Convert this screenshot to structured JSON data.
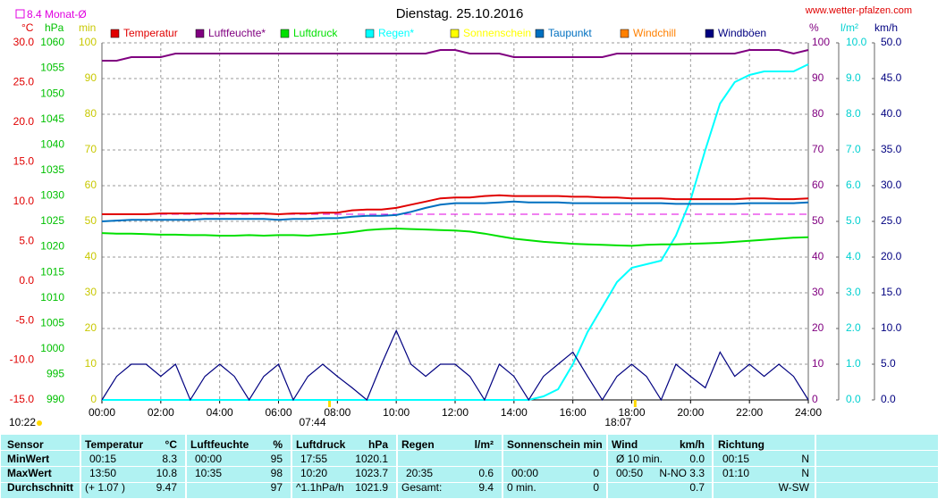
{
  "chart_data": {
    "type": "line",
    "title": "Dienstag. 25.10.2016",
    "site": "www.wetter-pfalzen.com",
    "monthly_mean": {
      "value": 8.4,
      "label": "8.4 Monat-Ø",
      "color": "#e000e0"
    },
    "day_length": "10:22",
    "sunrise": {
      "value": 7.733,
      "label": "07:44"
    },
    "sunset": {
      "value": 18.117,
      "label": "18:07"
    },
    "xlim": [
      0,
      24
    ],
    "xticks": [
      {
        "value": 0,
        "label": "00:00"
      },
      {
        "value": 2,
        "label": "02:00"
      },
      {
        "value": 4,
        "label": "04:00"
      },
      {
        "value": 6,
        "label": "06:00"
      },
      {
        "value": 8,
        "label": "08:00"
      },
      {
        "value": 10,
        "label": "10:00"
      },
      {
        "value": 12,
        "label": "12:00"
      },
      {
        "value": 14,
        "label": "14:00"
      },
      {
        "value": 16,
        "label": "16:00"
      },
      {
        "value": 18,
        "label": "18:00"
      },
      {
        "value": 20,
        "label": "20:00"
      },
      {
        "value": 22,
        "label": "22:00"
      },
      {
        "value": 24,
        "label": "24:00"
      }
    ],
    "grid": true,
    "axes": {
      "temp": {
        "unit": "°C",
        "color": "#e00000",
        "side": "left",
        "lim": [
          -15,
          30
        ],
        "ticks": [
          {
            "value": -15,
            "label": "-15.0"
          },
          {
            "value": -10,
            "label": "-10.0"
          },
          {
            "value": -5,
            "label": "-5.0"
          },
          {
            "value": 0,
            "label": "0.0"
          },
          {
            "value": 5,
            "label": "5.0"
          },
          {
            "value": 10,
            "label": "10.0"
          },
          {
            "value": 15,
            "label": "15.0"
          },
          {
            "value": 20,
            "label": "20.0"
          },
          {
            "value": 25,
            "label": "25.0"
          },
          {
            "value": 30,
            "label": "30.0"
          }
        ]
      },
      "hpa": {
        "unit": "hPa",
        "color": "#00c000",
        "side": "left",
        "lim": [
          990,
          1060
        ],
        "ticks": [
          990,
          995,
          1000,
          1005,
          1010,
          1015,
          1020,
          1025,
          1030,
          1035,
          1040,
          1045,
          1050,
          1055,
          1060
        ]
      },
      "min": {
        "unit": "min",
        "color": "#c8c800",
        "side": "left",
        "lim": [
          0,
          100
        ],
        "ticks": [
          0,
          10,
          20,
          30,
          40,
          50,
          60,
          70,
          80,
          90,
          100
        ]
      },
      "pct": {
        "unit": "%",
        "color": "#800080",
        "side": "right",
        "lim": [
          0,
          100
        ],
        "ticks": [
          0,
          10,
          20,
          30,
          40,
          50,
          60,
          70,
          80,
          90,
          100
        ]
      },
      "rain": {
        "unit": "l/m²",
        "color": "#00d0d0",
        "side": "right",
        "lim": [
          0,
          10
        ],
        "ticks": [
          {
            "value": 0,
            "label": "0.0"
          },
          {
            "value": 1,
            "label": "1.0"
          },
          {
            "value": 2,
            "label": "2.0"
          },
          {
            "value": 3,
            "label": "3.0"
          },
          {
            "value": 4,
            "label": "4.0"
          },
          {
            "value": 5,
            "label": "5.0"
          },
          {
            "value": 6,
            "label": "6.0"
          },
          {
            "value": 7,
            "label": "7.0"
          },
          {
            "value": 8,
            "label": "8.0"
          },
          {
            "value": 9,
            "label": "9.0"
          },
          {
            "value": 10,
            "label": "10.0"
          }
        ]
      },
      "wind": {
        "unit": "km/h",
        "color": "#000080",
        "side": "right",
        "lim": [
          0,
          50
        ],
        "ticks": [
          {
            "value": 0,
            "label": "0.0"
          },
          {
            "value": 5,
            "label": "5.0"
          },
          {
            "value": 10,
            "label": "10.0"
          },
          {
            "value": 15,
            "label": "15.0"
          },
          {
            "value": 20,
            "label": "20.0"
          },
          {
            "value": 25,
            "label": "25.0"
          },
          {
            "value": 30,
            "label": "30.0"
          },
          {
            "value": 35,
            "label": "35.0"
          },
          {
            "value": 40,
            "label": "40.0"
          },
          {
            "value": 45,
            "label": "45.0"
          },
          {
            "value": 50,
            "label": "50.0"
          }
        ]
      }
    },
    "x": [
      0,
      0.5,
      1,
      1.5,
      2,
      2.5,
      3,
      3.5,
      4,
      4.5,
      5,
      5.5,
      6,
      6.5,
      7,
      7.5,
      8,
      8.5,
      9,
      9.5,
      10,
      10.5,
      11,
      11.5,
      12,
      12.5,
      13,
      13.5,
      14,
      14.5,
      15,
      15.5,
      16,
      16.5,
      17,
      17.5,
      18,
      18.5,
      19,
      19.5,
      20,
      20.5,
      21,
      21.5,
      22,
      22.5,
      23,
      23.5,
      24
    ],
    "series": [
      {
        "name": "Temperatur",
        "color": "#e00000",
        "axis": "temp",
        "values": [
          8.4,
          8.4,
          8.4,
          8.4,
          8.5,
          8.5,
          8.5,
          8.5,
          8.5,
          8.5,
          8.5,
          8.5,
          8.4,
          8.5,
          8.5,
          8.6,
          8.6,
          8.9,
          9.0,
          9.0,
          9.2,
          9.6,
          10.0,
          10.4,
          10.5,
          10.5,
          10.7,
          10.8,
          10.7,
          10.7,
          10.7,
          10.7,
          10.6,
          10.6,
          10.5,
          10.5,
          10.4,
          10.4,
          10.4,
          10.3,
          10.3,
          10.3,
          10.3,
          10.3,
          10.4,
          10.4,
          10.3,
          10.3,
          10.4
        ]
      },
      {
        "name": "Luftfeuchte*",
        "color": "#800080",
        "axis": "pct",
        "values": [
          95,
          95,
          96,
          96,
          96,
          97,
          97,
          97,
          97,
          97,
          97,
          97,
          97,
          97,
          97,
          97,
          97,
          97,
          97,
          97,
          97,
          97,
          97,
          98,
          98,
          97,
          97,
          97,
          96,
          96,
          96,
          96,
          96,
          96,
          96,
          97,
          97,
          97,
          97,
          97,
          97,
          97,
          97,
          97,
          98,
          98,
          98,
          97,
          98
        ]
      },
      {
        "name": "Luftdruck",
        "color": "#00e000",
        "axis": "hpa",
        "values": [
          1022.7,
          1022.6,
          1022.6,
          1022.5,
          1022.4,
          1022.4,
          1022.3,
          1022.3,
          1022.2,
          1022.2,
          1022.3,
          1022.2,
          1022.3,
          1022.3,
          1022.2,
          1022.4,
          1022.6,
          1022.9,
          1023.3,
          1023.5,
          1023.6,
          1023.5,
          1023.4,
          1023.3,
          1023.2,
          1023.0,
          1022.6,
          1022.1,
          1021.6,
          1021.3,
          1021.0,
          1020.8,
          1020.6,
          1020.5,
          1020.4,
          1020.3,
          1020.2,
          1020.4,
          1020.5,
          1020.5,
          1020.6,
          1020.7,
          1020.8,
          1021.0,
          1021.2,
          1021.4,
          1021.6,
          1021.8,
          1021.9
        ]
      },
      {
        "name": "Regen*",
        "color": "#00ffff",
        "axis": "rain",
        "values": [
          0,
          0,
          0,
          0,
          0,
          0,
          0,
          0,
          0,
          0,
          0,
          0,
          0,
          0,
          0,
          0,
          0,
          0,
          0,
          0,
          0,
          0,
          0,
          0,
          0,
          0,
          0,
          0,
          0,
          0,
          0.1,
          0.3,
          1.0,
          1.9,
          2.6,
          3.3,
          3.7,
          3.8,
          3.9,
          4.6,
          5.6,
          7.0,
          8.3,
          8.9,
          9.1,
          9.2,
          9.2,
          9.2,
          9.4
        ]
      },
      {
        "name": "Sonnenschein",
        "color": "#ffff00",
        "axis": "min"
      },
      {
        "name": "Taupunkt",
        "color": "#0070c0",
        "axis": "temp",
        "values": [
          7.5,
          7.6,
          7.7,
          7.7,
          7.7,
          7.7,
          7.7,
          7.8,
          7.8,
          7.8,
          7.8,
          7.8,
          7.7,
          7.8,
          7.8,
          7.9,
          7.9,
          8.1,
          8.2,
          8.2,
          8.3,
          8.7,
          9.2,
          9.6,
          9.8,
          9.8,
          9.8,
          9.9,
          10.0,
          9.9,
          9.9,
          9.9,
          9.8,
          9.8,
          9.8,
          9.8,
          9.8,
          9.8,
          9.8,
          9.7,
          9.7,
          9.7,
          9.7,
          9.7,
          9.8,
          9.8,
          9.8,
          9.8,
          9.9
        ]
      },
      {
        "name": "Windchill",
        "color": "#ff8000",
        "axis": "temp"
      },
      {
        "name": "Windböen",
        "color": "#000080",
        "axis": "wind",
        "values": [
          0,
          3.3,
          5,
          5,
          3.3,
          5,
          0,
          3.3,
          5,
          3.3,
          0,
          3.3,
          5,
          0,
          3.3,
          5,
          3.3,
          1.7,
          0,
          5,
          9.7,
          5,
          3.3,
          5,
          5,
          3.3,
          0,
          5,
          3.3,
          0,
          3.3,
          5,
          6.7,
          3.3,
          0,
          3.3,
          5,
          3.3,
          0,
          5,
          3.3,
          1.7,
          6.7,
          3.3,
          5,
          3.3,
          5,
          3.3,
          0
        ]
      }
    ]
  },
  "table": {
    "header": [
      "Sensor",
      "Temperatur",
      "°C",
      "Luftfeuchte",
      "%",
      "Luftdruck",
      "hPa",
      "Regen",
      "l/m²",
      "Sonnenschein min",
      "Wind",
      "km/h",
      "Richtung"
    ],
    "rows": [
      [
        "MinWert",
        "00:15",
        "8.3",
        "00:00",
        "95",
        "17:55",
        "1020.1",
        "Ø 10 min.",
        "0.0",
        "00:15",
        "N"
      ],
      [
        "MaxWert",
        "13:50",
        "10.8",
        "10:35",
        "98",
        "10:20",
        "1023.7",
        "20:35",
        "0.6",
        "00:00",
        "0",
        "00:50",
        "N-NO 3.3",
        "01:10",
        "N"
      ],
      [
        "Durchschnitt",
        "(+ 1.07 )",
        "9.47",
        "97",
        "^1.1hPa/h",
        "1021.9",
        "Gesamt:",
        "9.4",
        "0 min.",
        "0",
        "0.7",
        "W-SW"
      ]
    ]
  }
}
